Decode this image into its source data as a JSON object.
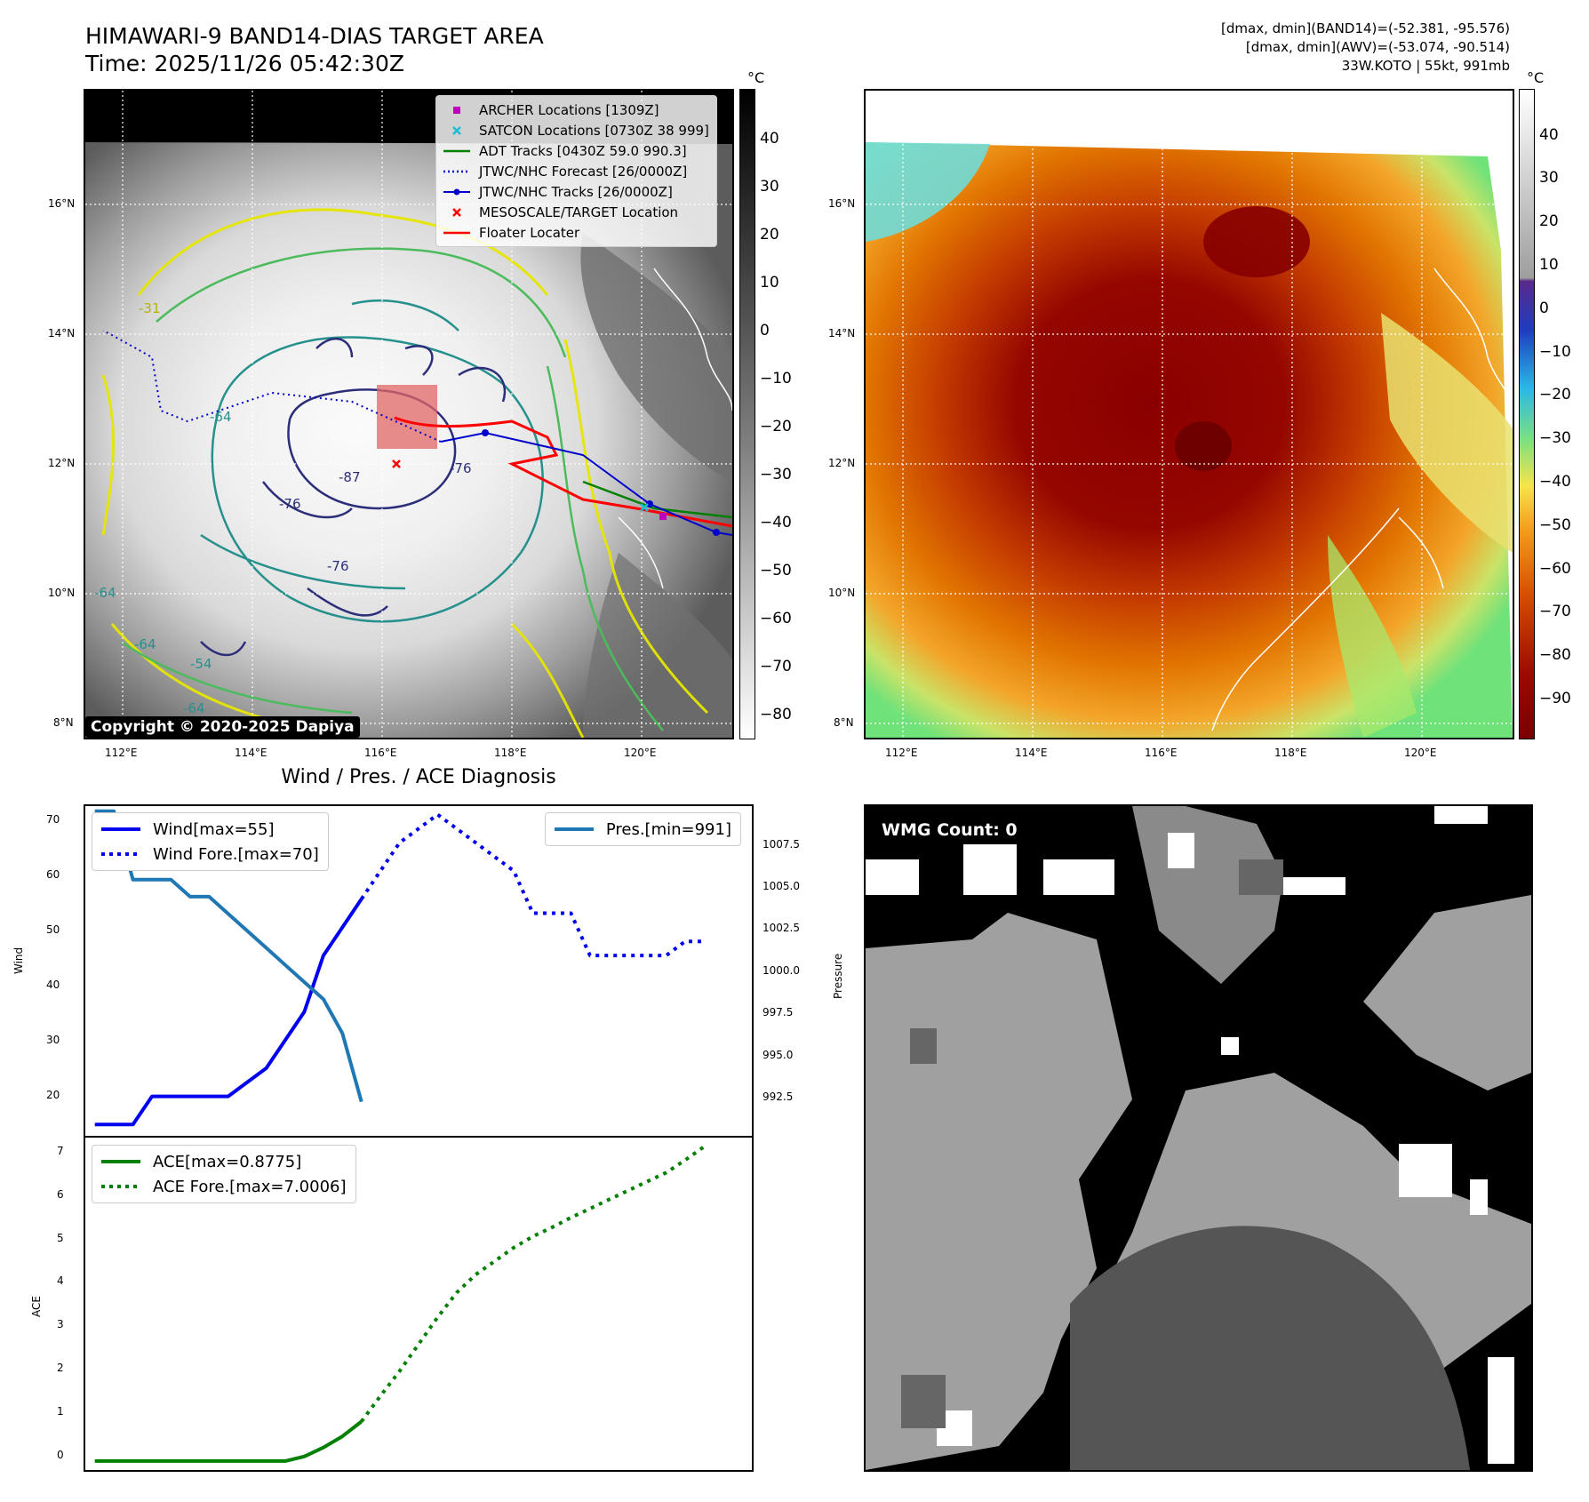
{
  "header": {
    "title_line1": "HIMAWARI-9 BAND14-DIAS TARGET AREA",
    "title_line2": "Time: 2025/11/26 05:42:30Z",
    "info_line1": "[dmax, dmin](BAND14)=(-52.381, -95.576)",
    "info_line2": "[dmax, dmin](AWV)=(-53.074, -90.514)",
    "info_line3": "33W.KOTO | 55kt, 991mb"
  },
  "map_axes": {
    "lat_labels": [
      "16°N",
      "14°N",
      "12°N",
      "10°N",
      "8°N"
    ],
    "lon_labels": [
      "112°E",
      "114°E",
      "116°E",
      "118°E",
      "120°E"
    ]
  },
  "left_map": {
    "copyright": "Copyright © 2020-2025 Dapiya",
    "contour_labels": [
      "-64",
      "-64",
      "-76",
      "-76",
      "-54",
      "-64",
      "-31",
      "-64",
      "-87",
      "-76"
    ],
    "colorbar": {
      "unit": "°C",
      "ticks": [
        "40",
        "30",
        "20",
        "10",
        "0",
        "−10",
        "−20",
        "−30",
        "−40",
        "−50",
        "−60",
        "−70",
        "−80"
      ]
    },
    "legend": [
      {
        "label": "ARCHER Locations [1309Z]",
        "color": "#c000c0",
        "marker": "square"
      },
      {
        "label": "SATCON Locations [0730Z 38 999]",
        "color": "#17becf",
        "marker": "x"
      },
      {
        "label": "ADT Tracks [0430Z 59.0 990.3]",
        "color": "#008000",
        "marker": "line"
      },
      {
        "label": "JTWC/NHC Forecast [26/0000Z]",
        "color": "#0000cc",
        "marker": "dotted"
      },
      {
        "label": "JTWC/NHC Tracks [26/0000Z]",
        "color": "#0000cc",
        "marker": "line-dot"
      },
      {
        "label": "MESOSCALE/TARGET Location",
        "color": "#ff0000",
        "marker": "x"
      },
      {
        "label": "Floater Locater",
        "color": "#ff0000",
        "marker": "line"
      }
    ]
  },
  "right_map": {
    "colorbar": {
      "unit": "°C",
      "ticks": [
        "40",
        "30",
        "20",
        "10",
        "0",
        "−10",
        "−20",
        "−30",
        "−40",
        "−50",
        "−60",
        "−70",
        "−80",
        "−90"
      ]
    }
  },
  "diagnosis": {
    "title": "Wind / Pres. / ACE Diagnosis",
    "wmg_label": "WMG Count: 0"
  },
  "chart_data": [
    {
      "type": "line",
      "title": "Wind / Pres. / ACE Diagnosis",
      "ylabel": "Wind",
      "ylabel_right": "Pressure",
      "ylim": [
        13,
        71.5
      ],
      "ylim_right": [
        990.0,
        1009.3
      ],
      "yticks": [
        "70",
        "60",
        "50",
        "40",
        "30",
        "20"
      ],
      "yticks_right": [
        "1007.5",
        "1005.0",
        "1002.5",
        "1000.0",
        "997.5",
        "995.0",
        "992.5"
      ],
      "xlim": [
        -0.5,
        34.5
      ],
      "series": [
        {
          "name": "Wind",
          "legend": "Wind[max=55]",
          "axis": "left",
          "color": "#0000ee",
          "style": "solid",
          "x": [
            0,
            2,
            3,
            7,
            9,
            10,
            11,
            12,
            13,
            14
          ],
          "values": [
            15,
            15,
            20,
            20,
            25,
            30,
            35,
            45,
            50,
            55
          ]
        },
        {
          "name": "Wind Fore.",
          "legend": "Wind Fore.[max=70]",
          "axis": "left",
          "color": "#0000ee",
          "style": "dotted",
          "x": [
            14,
            15,
            16,
            17,
            18,
            19,
            20,
            21,
            22,
            23,
            24,
            25,
            26,
            27,
            28,
            29,
            30,
            31,
            32
          ],
          "values": [
            55,
            60,
            65,
            67.5,
            70,
            67.5,
            65,
            62.5,
            60,
            52.5,
            52.5,
            52.5,
            45,
            45,
            45,
            45,
            45,
            47.5,
            47.5
          ]
        },
        {
          "name": "Pres.",
          "legend": "Pres.[min=991]",
          "axis": "right",
          "color": "#1f77b4",
          "style": "solid",
          "x": [
            0,
            1,
            2,
            3,
            4,
            5,
            6,
            7,
            8,
            9,
            10,
            11,
            12,
            13,
            14
          ],
          "values": [
            1009,
            1009,
            1005,
            1005,
            1005,
            1004,
            1004,
            1003,
            1002,
            1001,
            1000,
            999,
            998,
            996,
            992
          ]
        }
      ]
    },
    {
      "type": "line",
      "ylabel": "ACE",
      "ylim": [
        -0.2,
        7.2
      ],
      "yticks": [
        "0",
        "1",
        "2",
        "3",
        "4",
        "5",
        "6",
        "7"
      ],
      "xlim": [
        -0.5,
        34.5
      ],
      "series": [
        {
          "name": "ACE",
          "legend": "ACE[max=0.8775]",
          "color": "#008000",
          "style": "solid",
          "x": [
            0,
            2,
            4,
            6,
            8,
            10,
            11,
            12,
            13,
            14
          ],
          "values": [
            0,
            0,
            0,
            0,
            0,
            0,
            0.1,
            0.3,
            0.55,
            0.8775
          ]
        },
        {
          "name": "ACE Fore.",
          "legend": "ACE Fore.[max=7.0006]",
          "color": "#008000",
          "style": "dotted",
          "x": [
            14,
            15,
            16,
            17,
            18,
            19,
            20,
            21,
            22,
            23,
            24,
            25,
            26,
            27,
            28,
            29,
            30,
            31,
            32
          ],
          "values": [
            0.8775,
            1.45,
            2.0,
            2.6,
            3.2,
            3.75,
            4.15,
            4.45,
            4.75,
            5.0,
            5.2,
            5.42,
            5.62,
            5.82,
            6.02,
            6.22,
            6.42,
            6.7,
            7.0006
          ]
        }
      ]
    }
  ]
}
